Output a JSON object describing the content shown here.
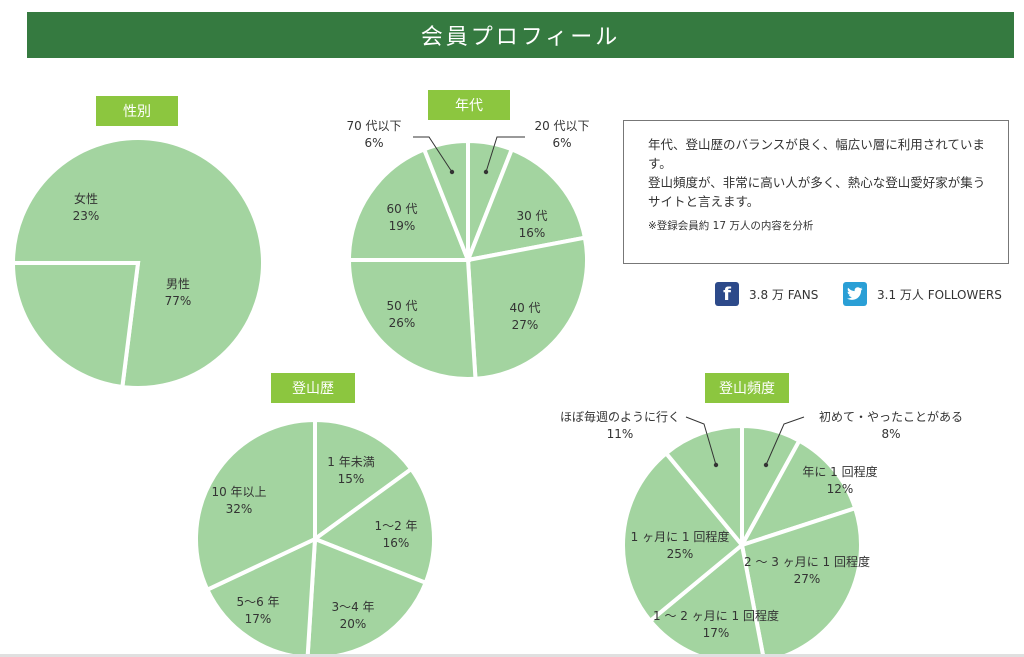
{
  "header": {
    "title": "会員プロフィール"
  },
  "info": {
    "line1": "年代、登山歴のバランスが良く、幅広い層に利用されています。",
    "line2": "登山頻度が、非常に高い人が多く、熱心な登山愛好家が集うサイトと言えます。",
    "note": "※登録会員約 17 万人の内容を分析"
  },
  "social": {
    "facebook_text": "3.8 万 FANS",
    "twitter_text": "3.1 万人 FOLLOWERS",
    "facebook_icon": "facebook-icon",
    "twitter_icon": "twitter-bird-icon"
  },
  "colors": {
    "header": "#357a40",
    "tag": "#8cc63f",
    "slice": "#a3d4a0",
    "divider": "#ffffff"
  },
  "chart_data": [
    {
      "type": "pie",
      "title": "性別",
      "slices": [
        {
          "label": "男性",
          "pct": "77%",
          "value": 77
        },
        {
          "label": "女性",
          "pct": "23%",
          "value": 23
        }
      ]
    },
    {
      "type": "pie",
      "title": "年代",
      "slices": [
        {
          "label": "20 代以下",
          "pct": "6%",
          "value": 6
        },
        {
          "label": "30 代",
          "pct": "16%",
          "value": 16
        },
        {
          "label": "40 代",
          "pct": "27%",
          "value": 27
        },
        {
          "label": "50 代",
          "pct": "26%",
          "value": 26
        },
        {
          "label": "60 代",
          "pct": "19%",
          "value": 19
        },
        {
          "label": "70 代以下",
          "pct": "6%",
          "value": 6
        }
      ]
    },
    {
      "type": "pie",
      "title": "登山歴",
      "slices": [
        {
          "label": "1 年未満",
          "pct": "15%",
          "value": 15
        },
        {
          "label": "1〜2 年",
          "pct": "16%",
          "value": 16
        },
        {
          "label": "3〜4 年",
          "pct": "20%",
          "value": 20
        },
        {
          "label": "5〜6 年",
          "pct": "17%",
          "value": 17
        },
        {
          "label": "10 年以上",
          "pct": "32%",
          "value": 32
        }
      ]
    },
    {
      "type": "pie",
      "title": "登山頻度",
      "slices": [
        {
          "label": "初めて・やったことがある",
          "pct": "8%",
          "value": 8
        },
        {
          "label": "年に 1 回程度",
          "pct": "12%",
          "value": 12
        },
        {
          "label": "2 〜 3 ヶ月に 1 回程度",
          "pct": "27%",
          "value": 27
        },
        {
          "label": "1 〜 2 ヶ月に 1 回程度",
          "pct": "17%",
          "value": 17
        },
        {
          "label": "1 ヶ月に 1 回程度",
          "pct": "25%",
          "value": 25
        },
        {
          "label": "ほぼ毎週のように行く",
          "pct": "11%",
          "value": 11
        }
      ]
    }
  ]
}
